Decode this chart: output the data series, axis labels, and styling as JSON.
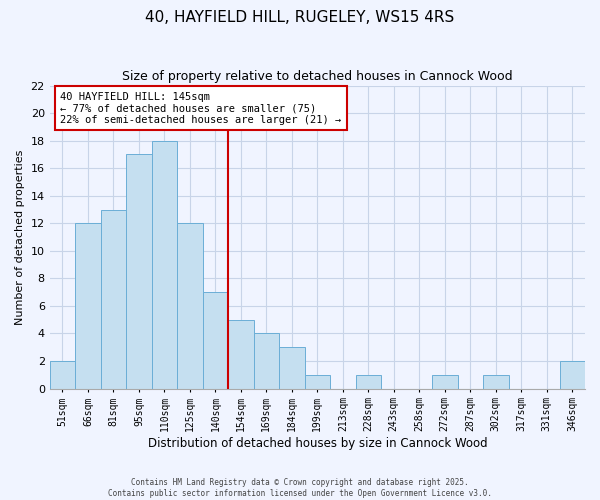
{
  "title": "40, HAYFIELD HILL, RUGELEY, WS15 4RS",
  "subtitle": "Size of property relative to detached houses in Cannock Wood",
  "xlabel": "Distribution of detached houses by size in Cannock Wood",
  "ylabel": "Number of detached properties",
  "bin_labels": [
    "51sqm",
    "66sqm",
    "81sqm",
    "95sqm",
    "110sqm",
    "125sqm",
    "140sqm",
    "154sqm",
    "169sqm",
    "184sqm",
    "199sqm",
    "213sqm",
    "228sqm",
    "243sqm",
    "258sqm",
    "272sqm",
    "287sqm",
    "302sqm",
    "317sqm",
    "331sqm",
    "346sqm"
  ],
  "bar_values": [
    2,
    12,
    13,
    17,
    18,
    12,
    7,
    5,
    4,
    3,
    1,
    0,
    1,
    0,
    0,
    1,
    0,
    1,
    0,
    0,
    2
  ],
  "bar_color": "#c5dff0",
  "bar_edge_color": "#6baed6",
  "vline_color": "#cc0000",
  "annotation_text": "40 HAYFIELD HILL: 145sqm\n← 77% of detached houses are smaller (75)\n22% of semi-detached houses are larger (21) →",
  "annotation_box_color": "#ffffff",
  "annotation_box_edge_color": "#cc0000",
  "ylim": [
    0,
    22
  ],
  "yticks": [
    0,
    2,
    4,
    6,
    8,
    10,
    12,
    14,
    16,
    18,
    20,
    22
  ],
  "background_color": "#f0f4ff",
  "grid_color": "#c8d4e8",
  "footer_text": "Contains HM Land Registry data © Crown copyright and database right 2025.\nContains public sector information licensed under the Open Government Licence v3.0."
}
